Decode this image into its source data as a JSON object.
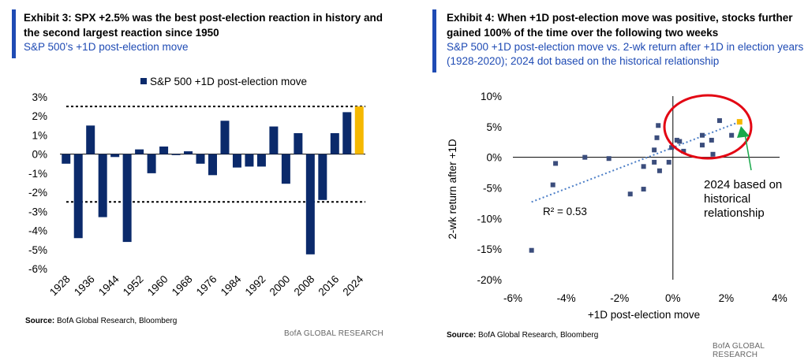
{
  "colors": {
    "navy": "#0b2a6b",
    "highlight": "#f5b800",
    "accent": "#1f4bb4",
    "annot_green": "#18a84a",
    "annot_red": "#e30613"
  },
  "left": {
    "title": "Exhibit 3: SPX +2.5% was the best post-election reaction in history and the second largest reaction since 1950",
    "subtitle": "S&P 500’s +1D post-election move",
    "source_label": "Source:",
    "source_text": " BofA Global Research, Bloomberg",
    "brand": "BofA GLOBAL RESEARCH"
  },
  "right": {
    "title": "Exhibit 4: When +1D post-election move was positive, stocks further gained 100% of the time over the following two weeks",
    "subtitle": "S&P 500 +1D post-election move vs. 2-wk return after +1D in election years (1928-2020); 2024 dot based on the historical relationship",
    "source_label": "Source:",
    "source_text": " BofA Global Research, Bloomberg",
    "brand": "BofA GLOBAL RESEARCH"
  },
  "chart_data": [
    {
      "type": "bar",
      "legend": "S&P 500 +1D post-election move",
      "legend_position": "top-center",
      "ylim": [
        -6,
        3
      ],
      "yticks": [
        "3%",
        "2%",
        "1%",
        "0%",
        "-1%",
        "-2%",
        "-3%",
        "-4%",
        "-5%",
        "-6%"
      ],
      "ytick_values": [
        3,
        2,
        1,
        0,
        -1,
        -2,
        -3,
        -4,
        -5,
        -6
      ],
      "xtick_labels": [
        "1928",
        "1936",
        "1944",
        "1952",
        "1960",
        "1968",
        "1976",
        "1984",
        "1992",
        "2000",
        "2008",
        "2016",
        "2024"
      ],
      "categories": [
        "1928",
        "1932",
        "1936",
        "1940",
        "1944",
        "1948",
        "1952",
        "1956",
        "1960",
        "1964",
        "1968",
        "1972",
        "1976",
        "1980",
        "1984",
        "1988",
        "1992",
        "1996",
        "2000",
        "2004",
        "2008",
        "2012",
        "2016",
        "2020",
        "2024"
      ],
      "values": [
        -0.5,
        -4.4,
        1.5,
        -3.3,
        -0.15,
        -4.6,
        0.25,
        -1.0,
        0.4,
        -0.05,
        0.15,
        -0.5,
        -1.1,
        1.75,
        -0.7,
        -0.65,
        -0.65,
        1.45,
        -1.55,
        1.1,
        -5.25,
        -2.4,
        1.1,
        2.2,
        2.5
      ],
      "highlight_index": 24,
      "reference_lines": [
        2.5,
        -2.5
      ]
    },
    {
      "type": "scatter",
      "xlabel": "+1D post-election move",
      "ylabel": "2-wk return after +1D",
      "xlim": [
        -6,
        4
      ],
      "ylim": [
        -20,
        10
      ],
      "xticks": [
        "-6%",
        "-4%",
        "-2%",
        "0%",
        "2%",
        "4%"
      ],
      "xtick_values": [
        -6,
        -4,
        -2,
        0,
        2,
        4
      ],
      "yticks": [
        "10%",
        "5%",
        "0%",
        "-5%",
        "-10%",
        "-15%",
        "-20%"
      ],
      "ytick_values": [
        10,
        5,
        0,
        -5,
        -10,
        -15,
        -20
      ],
      "points": [
        {
          "x": -5.3,
          "y": -15.2
        },
        {
          "x": -4.5,
          "y": -4.5
        },
        {
          "x": -4.4,
          "y": -1.0
        },
        {
          "x": -3.3,
          "y": 0.0
        },
        {
          "x": -2.4,
          "y": -0.2
        },
        {
          "x": -1.6,
          "y": -6.0
        },
        {
          "x": -1.1,
          "y": -5.2
        },
        {
          "x": -1.1,
          "y": -1.5
        },
        {
          "x": -0.7,
          "y": -0.8
        },
        {
          "x": -0.7,
          "y": 1.2
        },
        {
          "x": -0.6,
          "y": 3.2
        },
        {
          "x": -0.55,
          "y": 5.2
        },
        {
          "x": -0.5,
          "y": -2.2
        },
        {
          "x": -0.15,
          "y": -0.8
        },
        {
          "x": 0.15,
          "y": 2.8
        },
        {
          "x": 0.25,
          "y": 2.6
        },
        {
          "x": 0.4,
          "y": 1.0
        },
        {
          "x": -0.05,
          "y": 1.6
        },
        {
          "x": 1.1,
          "y": 3.6
        },
        {
          "x": 1.1,
          "y": 2.0
        },
        {
          "x": 1.45,
          "y": 2.8
        },
        {
          "x": 1.5,
          "y": 0.5
        },
        {
          "x": 1.75,
          "y": 6.0
        },
        {
          "x": 2.2,
          "y": 3.6
        }
      ],
      "highlight_point": {
        "x": 2.5,
        "y": 5.8
      },
      "trendline": {
        "x1": -5.3,
        "y1": -7.3,
        "x2": 2.5,
        "y2": 5.8
      },
      "r2_label": "R² = 0.53",
      "annotation": "2024 based on historical relationship",
      "annotation_lines": [
        "2024 based on",
        "historical",
        "relationship"
      ]
    }
  ]
}
